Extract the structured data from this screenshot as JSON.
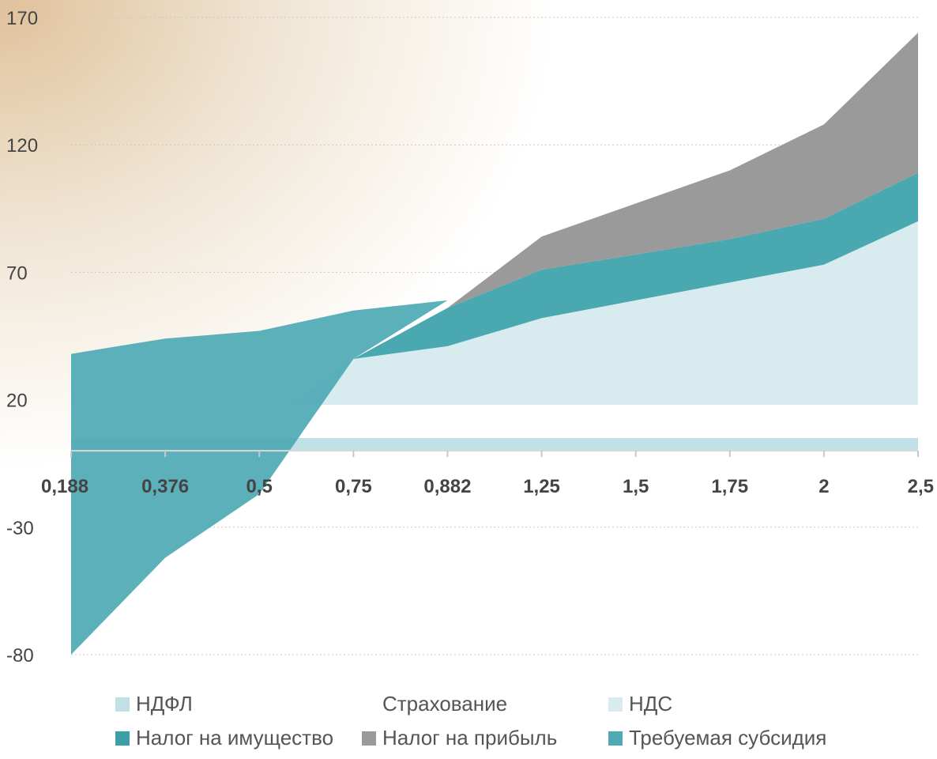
{
  "chart_data": {
    "type": "area",
    "categories": [
      "0,188",
      "0,376",
      "0,5",
      "0,75",
      "0,882",
      "1,25",
      "1,5",
      "1,75",
      "2",
      "2,5"
    ],
    "ylim": [
      -80,
      170
    ],
    "yticks": [
      "170",
      "120",
      "70",
      "20",
      "-30",
      "-80"
    ],
    "ytick_values": [
      170,
      120,
      70,
      20,
      -30,
      -80
    ],
    "grid": true,
    "legend_position": "bottom",
    "series": [
      {
        "name": "НДФЛ",
        "color": "#bfe0e5",
        "values": [
          0,
          0,
          0,
          0,
          0,
          0,
          0,
          0,
          0,
          0
        ]
      },
      {
        "name": "Страхование",
        "color": "#ffffff",
        "values": [
          0,
          0,
          0,
          0,
          0,
          0,
          0,
          0,
          0,
          0
        ]
      },
      {
        "name": "НДС",
        "color": "#d8ecef",
        "values": [
          0,
          0,
          0,
          36,
          41,
          52,
          59,
          66,
          73,
          90
        ]
      },
      {
        "name": "Налог на имущество",
        "color": "#49a8b0",
        "values": [
          0,
          0,
          0,
          0,
          15,
          19,
          18,
          17,
          18,
          19
        ]
      },
      {
        "name": "Налог на прибыль",
        "color": "#9a9a9a",
        "values": [
          0,
          0,
          0,
          0,
          0,
          13,
          20,
          27,
          37,
          55
        ]
      },
      {
        "name": "Требуемая субсидия",
        "color": "#4ea9b4",
        "values": [
          38,
          44,
          47,
          55,
          59,
          0,
          0,
          0,
          0,
          0
        ]
      }
    ],
    "subsidy_below_values": [
      -80,
      -42,
      -17,
      36,
      59,
      0,
      0,
      0,
      0,
      0
    ]
  },
  "legend": [
    {
      "label": "НДФЛ",
      "color": "#bfe0e5"
    },
    {
      "label": "Страхование",
      "color": "#ffffff"
    },
    {
      "label": "НДС",
      "color": "#d8ecef"
    },
    {
      "label": "Налог на имущество",
      "color": "#3b9fa7"
    },
    {
      "label": "Налог на прибыль",
      "color": "#9a9a9a"
    },
    {
      "label": "Требуемая субсидия",
      "color": "#4ea9b4"
    }
  ]
}
